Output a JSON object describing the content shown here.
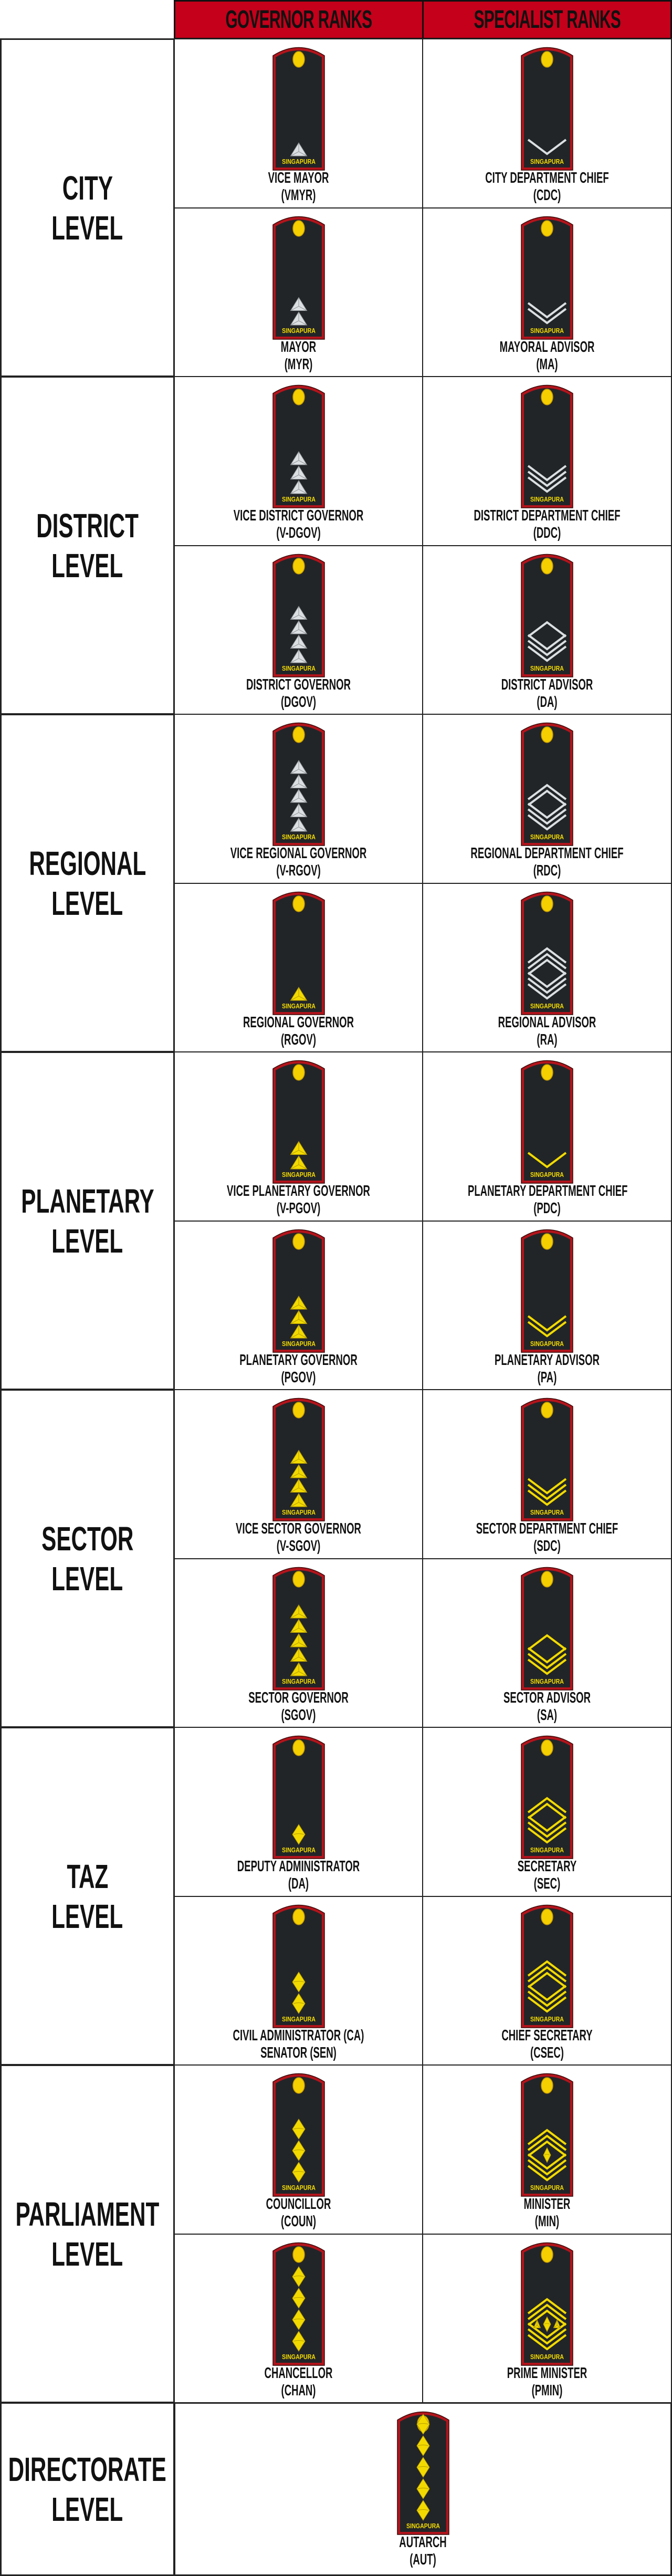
{
  "header": {
    "governor": "GOVERNOR RANKS",
    "specialist": "SPECIALIST RANKS"
  },
  "colors": {
    "header_red": "#c4001a",
    "epaulette_body": "#222528",
    "piping": "#b3141c",
    "silver": "#dcdfe2",
    "gold": "#f2da00",
    "button": "#f5cf00"
  },
  "epaulette_text": "SINGAPURA",
  "levels": [
    {
      "label_lines": [
        "CITY",
        "LEVEL"
      ],
      "rows": [
        {
          "governor": {
            "lines": [
              "VICE MAYOR",
              "(VMYR)"
            ],
            "insignia": {
              "type": "triangle",
              "count": 1,
              "metal": "silver"
            }
          },
          "specialist": {
            "lines": [
              "CITY DEPARTMENT CHIEF",
              "(CDC)"
            ],
            "insignia": {
              "type": "chevron",
              "chevrons": 1,
              "carets": 0,
              "metal": "silver"
            }
          }
        },
        {
          "governor": {
            "lines": [
              "MAYOR",
              "(MYR)"
            ],
            "insignia": {
              "type": "triangle",
              "count": 2,
              "metal": "silver"
            }
          },
          "specialist": {
            "lines": [
              "MAYORAL ADVISOR",
              "(MA)"
            ],
            "insignia": {
              "type": "chevron",
              "chevrons": 2,
              "carets": 0,
              "metal": "silver"
            }
          }
        }
      ]
    },
    {
      "label_lines": [
        "DISTRICT",
        "LEVEL"
      ],
      "rows": [
        {
          "governor": {
            "lines": [
              "VICE DISTRICT GOVERNOR",
              "(V-DGOV)"
            ],
            "insignia": {
              "type": "triangle",
              "count": 3,
              "metal": "silver"
            }
          },
          "specialist": {
            "lines": [
              "DISTRICT DEPARTMENT CHIEF",
              "(DDC)"
            ],
            "insignia": {
              "type": "chevron",
              "chevrons": 3,
              "carets": 0,
              "metal": "silver"
            }
          }
        },
        {
          "governor": {
            "lines": [
              "DISTRICT GOVERNOR",
              "(DGOV)"
            ],
            "insignia": {
              "type": "triangle",
              "count": 4,
              "metal": "silver"
            }
          },
          "specialist": {
            "lines": [
              "DISTRICT ADVISOR",
              "(DA)"
            ],
            "insignia": {
              "type": "chevron",
              "chevrons": 3,
              "carets": 1,
              "metal": "silver"
            }
          }
        }
      ]
    },
    {
      "label_lines": [
        "REGIONAL",
        "LEVEL"
      ],
      "rows": [
        {
          "governor": {
            "lines": [
              "VICE REGIONAL GOVERNOR",
              "(V-RGOV)"
            ],
            "insignia": {
              "type": "triangle",
              "count": 5,
              "metal": "silver"
            }
          },
          "specialist": {
            "lines": [
              "REGIONAL DEPARTMENT CHIEF",
              "(RDC)"
            ],
            "insignia": {
              "type": "chevron",
              "chevrons": 3,
              "carets": 2,
              "metal": "silver"
            }
          }
        },
        {
          "governor": {
            "lines": [
              "REGIONAL GOVERNOR",
              "(RGOV)"
            ],
            "insignia": {
              "type": "triangle",
              "count": 1,
              "metal": "gold"
            }
          },
          "specialist": {
            "lines": [
              "REGIONAL ADVISOR",
              "(RA)"
            ],
            "insignia": {
              "type": "chevron",
              "chevrons": 3,
              "carets": 3,
              "metal": "silver"
            }
          }
        }
      ]
    },
    {
      "label_lines": [
        "PLANETARY",
        "LEVEL"
      ],
      "rows": [
        {
          "governor": {
            "lines": [
              "VICE PLANETARY GOVERNOR",
              "(V-PGOV)"
            ],
            "insignia": {
              "type": "triangle",
              "count": 2,
              "metal": "gold"
            }
          },
          "specialist": {
            "lines": [
              "PLANETARY DEPARTMENT CHIEF",
              "(PDC)"
            ],
            "insignia": {
              "type": "chevron",
              "chevrons": 1,
              "carets": 0,
              "metal": "gold"
            }
          }
        },
        {
          "governor": {
            "lines": [
              "PLANETARY GOVERNOR",
              "(PGOV)"
            ],
            "insignia": {
              "type": "triangle",
              "count": 3,
              "metal": "gold"
            }
          },
          "specialist": {
            "lines": [
              "PLANETARY ADVISOR",
              "(PA)"
            ],
            "insignia": {
              "type": "chevron",
              "chevrons": 2,
              "carets": 0,
              "metal": "gold"
            }
          }
        }
      ]
    },
    {
      "label_lines": [
        "SECTOR",
        "LEVEL"
      ],
      "rows": [
        {
          "governor": {
            "lines": [
              "VICE SECTOR GOVERNOR",
              "(V-SGOV)"
            ],
            "insignia": {
              "type": "triangle",
              "count": 4,
              "metal": "gold"
            }
          },
          "specialist": {
            "lines": [
              "SECTOR DEPARTMENT CHIEF",
              "(SDC)"
            ],
            "insignia": {
              "type": "chevron",
              "chevrons": 3,
              "carets": 0,
              "metal": "gold"
            }
          }
        },
        {
          "governor": {
            "lines": [
              "SECTOR GOVERNOR",
              "(SGOV)"
            ],
            "insignia": {
              "type": "triangle",
              "count": 5,
              "metal": "gold"
            }
          },
          "specialist": {
            "lines": [
              "SECTOR ADVISOR",
              "(SA)"
            ],
            "insignia": {
              "type": "chevron",
              "chevrons": 3,
              "carets": 1,
              "metal": "gold"
            }
          }
        }
      ]
    },
    {
      "label_lines": [
        "TAZ",
        "LEVEL"
      ],
      "rows": [
        {
          "governor": {
            "lines": [
              "DEPUTY ADMINISTRATOR",
              "(DA)"
            ],
            "insignia": {
              "type": "diamond",
              "count": 1,
              "metal": "gold"
            }
          },
          "specialist": {
            "lines": [
              "SECRETARY",
              "(SEC)"
            ],
            "insignia": {
              "type": "chevron",
              "chevrons": 3,
              "carets": 2,
              "metal": "gold"
            }
          }
        },
        {
          "governor": {
            "lines": [
              "CIVIL ADMINISTRATOR (CA)",
              "SENATOR (SEN)"
            ],
            "insignia": {
              "type": "diamond",
              "count": 2,
              "metal": "gold"
            }
          },
          "specialist": {
            "lines": [
              "CHIEF SECRETARY",
              "(CSEC)"
            ],
            "insignia": {
              "type": "chevron",
              "chevrons": 3,
              "carets": 3,
              "metal": "gold"
            }
          }
        }
      ]
    },
    {
      "label_lines": [
        "PARLIAMENT",
        "LEVEL"
      ],
      "rows": [
        {
          "governor": {
            "lines": [
              "COUNCILLOR",
              "(COUN)"
            ],
            "insignia": {
              "type": "diamond",
              "count": 3,
              "metal": "gold"
            }
          },
          "specialist": {
            "lines": [
              "MINISTER",
              "(MIN)"
            ],
            "insignia": {
              "type": "chevron",
              "chevrons": 3,
              "carets": 3,
              "center": "diamond",
              "metal": "gold"
            }
          }
        },
        {
          "governor": {
            "lines": [
              "CHANCELLOR",
              "(CHAN)"
            ],
            "insignia": {
              "type": "diamond",
              "count": 4,
              "metal": "gold"
            }
          },
          "specialist": {
            "lines": [
              "PRIME MINISTER",
              "(PMIN)"
            ],
            "insignia": {
              "type": "chevron",
              "chevrons": 3,
              "carets": 3,
              "center": "diamond-with-triangles",
              "metal": "gold"
            }
          }
        }
      ]
    }
  ],
  "directorate": {
    "label_lines": [
      "DIRECTORATE",
      "LEVEL"
    ],
    "rank": {
      "lines": [
        "AUTARCH",
        "(AUT)"
      ],
      "insignia": {
        "type": "diamond",
        "count": 5,
        "metal": "gold"
      }
    }
  }
}
